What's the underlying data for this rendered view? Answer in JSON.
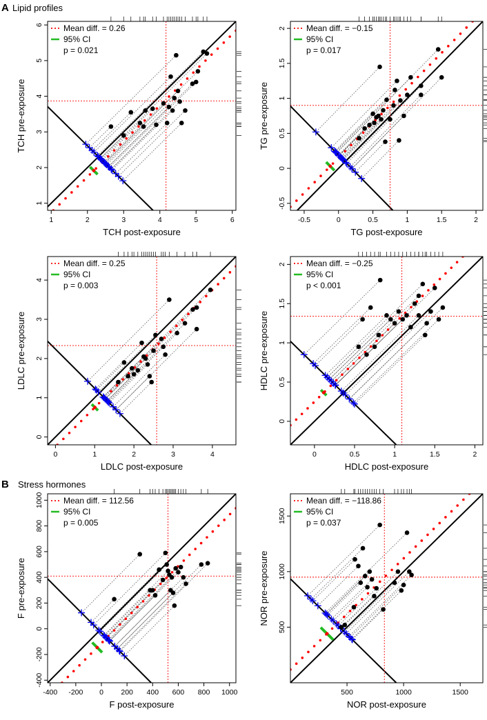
{
  "figure": {
    "section_a": {
      "letter": "A",
      "title": "Lipid profiles"
    },
    "section_b": {
      "letter": "B",
      "title": "Stress hormones"
    }
  },
  "legend_labels": {
    "mean": "Mean diff.",
    "ci": "95% CI"
  },
  "colors": {
    "mean": "#ff0000",
    "ci": "#22bb22",
    "proj": "#0000ee",
    "point": "#000000",
    "guide": "#555555"
  },
  "chart_data": [
    {
      "type": "scatter",
      "id": "tch",
      "xlabel": "TCH post-exposure",
      "ylabel": "TCH pre-exposure",
      "xlim": [
        0.9,
        6.1
      ],
      "ylim": [
        0.8,
        6.1
      ],
      "xticks": [
        1,
        2,
        3,
        4,
        5,
        6
      ],
      "yticks": [
        1,
        2,
        3,
        4,
        5,
        6
      ],
      "mean_text": "Mean diff. = 0.26",
      "p_text": "p = 0.021",
      "mean_diff": 0.26,
      "ci": [
        0.05,
        0.47
      ],
      "mean_x": 4.17,
      "mean_y": 3.87,
      "points": [
        [
          2.65,
          3.15
        ],
        [
          3.0,
          2.9
        ],
        [
          3.2,
          3.55
        ],
        [
          3.45,
          3.25
        ],
        [
          3.55,
          3.15
        ],
        [
          3.6,
          3.6
        ],
        [
          3.8,
          3.65
        ],
        [
          3.9,
          3.2
        ],
        [
          4.1,
          3.8
        ],
        [
          4.2,
          3.25
        ],
        [
          4.25,
          3.7
        ],
        [
          4.3,
          4.55
        ],
        [
          4.35,
          3.6
        ],
        [
          4.4,
          3.95
        ],
        [
          4.45,
          5.15
        ],
        [
          4.5,
          4.15
        ],
        [
          4.55,
          3.85
        ],
        [
          4.6,
          3.25
        ],
        [
          4.7,
          3.6
        ],
        [
          4.9,
          4.35
        ],
        [
          5.0,
          4.4
        ],
        [
          5.05,
          4.7
        ],
        [
          5.2,
          5.25
        ],
        [
          5.3,
          5.2
        ]
      ]
    },
    {
      "type": "scatter",
      "id": "tg",
      "xlabel": "TG post-exposure",
      "ylabel": "TG pre-exposure",
      "xlim": [
        -0.7,
        2.1
      ],
      "ylim": [
        -0.6,
        2.1
      ],
      "xticks": [
        -0.5,
        0.0,
        0.5,
        1.0,
        1.5,
        2.0
      ],
      "yticks": [
        -0.5,
        0.0,
        0.5,
        1.0,
        1.5,
        2.0
      ],
      "mean_text": "Mean diff. = −0.15",
      "p_text": "p = 0.017",
      "mean_diff": -0.15,
      "ci": [
        -0.27,
        -0.03
      ],
      "mean_x": 0.75,
      "mean_y": 0.9,
      "points": [
        [
          0.3,
          0.43
        ],
        [
          0.38,
          0.57
        ],
        [
          0.45,
          0.62
        ],
        [
          0.5,
          0.78
        ],
        [
          0.52,
          0.65
        ],
        [
          0.55,
          0.73
        ],
        [
          0.58,
          0.75
        ],
        [
          0.6,
          1.45
        ],
        [
          0.62,
          0.7
        ],
        [
          0.65,
          0.83
        ],
        [
          0.68,
          0.38
        ],
        [
          0.7,
          0.98
        ],
        [
          0.75,
          0.7
        ],
        [
          0.8,
          0.9
        ],
        [
          0.82,
          1.12
        ],
        [
          0.85,
          1.25
        ],
        [
          0.88,
          0.4
        ],
        [
          0.9,
          0.97
        ],
        [
          0.95,
          0.75
        ],
        [
          1.0,
          1.05
        ],
        [
          1.05,
          1.3
        ],
        [
          1.2,
          1.05
        ],
        [
          1.2,
          1.18
        ],
        [
          1.45,
          1.7
        ],
        [
          1.5,
          1.3
        ]
      ]
    },
    {
      "type": "scatter",
      "id": "ldlc",
      "xlabel": "LDLC post-exposure",
      "ylabel": "LDLC pre-exposure",
      "xlim": [
        -0.2,
        4.6
      ],
      "ylim": [
        -0.2,
        4.6
      ],
      "xticks": [
        0,
        1,
        2,
        3,
        4
      ],
      "yticks": [
        0,
        1,
        2,
        3,
        4
      ],
      "mean_text": "Mean diff. = 0.25",
      "p_text": "p = 0.003",
      "mean_diff": 0.25,
      "ci": [
        0.09,
        0.41
      ],
      "mean_x": 2.58,
      "mean_y": 2.33,
      "points": [
        [
          1.6,
          1.4
        ],
        [
          1.75,
          1.9
        ],
        [
          1.85,
          1.55
        ],
        [
          1.95,
          1.75
        ],
        [
          2.0,
          1.6
        ],
        [
          2.1,
          1.7
        ],
        [
          2.2,
          2.4
        ],
        [
          2.25,
          2.05
        ],
        [
          2.3,
          2.0
        ],
        [
          2.35,
          1.85
        ],
        [
          2.4,
          1.55
        ],
        [
          2.45,
          1.4
        ],
        [
          2.5,
          2.2
        ],
        [
          2.55,
          2.6
        ],
        [
          2.7,
          2.5
        ],
        [
          2.75,
          2.3
        ],
        [
          2.8,
          2.1
        ],
        [
          2.9,
          3.5
        ],
        [
          3.1,
          2.65
        ],
        [
          3.3,
          2.9
        ],
        [
          3.5,
          3.25
        ],
        [
          3.6,
          3.3
        ],
        [
          3.6,
          2.75
        ],
        [
          3.95,
          3.75
        ]
      ]
    },
    {
      "type": "scatter",
      "id": "hdlc",
      "xlabel": "HDLC post-exposure",
      "ylabel": "HDLC pre-exposure",
      "xlim": [
        -0.3,
        2.1
      ],
      "ylim": [
        -0.3,
        2.1
      ],
      "xticks": [
        0.0,
        0.5,
        1.0,
        1.5,
        2.0
      ],
      "yticks": [
        0.0,
        0.5,
        1.0,
        1.5,
        2.0
      ],
      "mean_text": "Mean diff. = −0.25",
      "p_text": "p < 0.001",
      "mean_diff": -0.25,
      "ci": [
        -0.32,
        -0.18
      ],
      "mean_x": 1.09,
      "mean_y": 1.34,
      "points": [
        [
          0.55,
          0.95
        ],
        [
          0.6,
          1.3
        ],
        [
          0.65,
          0.85
        ],
        [
          0.7,
          1.45
        ],
        [
          0.75,
          0.95
        ],
        [
          0.8,
          1.1
        ],
        [
          0.82,
          1.8
        ],
        [
          0.9,
          1.35
        ],
        [
          0.95,
          1.3
        ],
        [
          1.0,
          1.25
        ],
        [
          1.05,
          1.4
        ],
        [
          1.1,
          1.3
        ],
        [
          1.15,
          1.35
        ],
        [
          1.2,
          1.2
        ],
        [
          1.25,
          1.5
        ],
        [
          1.3,
          1.35
        ],
        [
          1.35,
          1.75
        ],
        [
          1.4,
          1.25
        ],
        [
          1.45,
          1.4
        ],
        [
          1.5,
          1.7
        ],
        [
          1.55,
          1.3
        ],
        [
          1.6,
          1.45
        ],
        [
          1.3,
          1.6
        ],
        [
          1.38,
          1.1
        ]
      ]
    },
    {
      "type": "scatter",
      "id": "f",
      "xlabel": "F post-exposure",
      "ylabel": "F pre-exposure",
      "xlim": [
        -420,
        1050
      ],
      "ylim": [
        -420,
        1050
      ],
      "xticks": [
        -400,
        -200,
        0,
        200,
        400,
        600,
        800,
        1000
      ],
      "yticks": [
        -400,
        -200,
        0,
        200,
        400,
        600,
        800,
        1000
      ],
      "mean_text": "Mean diff. = 112.56",
      "p_text": "p = 0.005",
      "mean_diff": 112.56,
      "ci": [
        35,
        190
      ],
      "mean_x": 520,
      "mean_y": 410,
      "points": [
        [
          100,
          230
        ],
        [
          300,
          580
        ],
        [
          380,
          300
        ],
        [
          400,
          300
        ],
        [
          420,
          260
        ],
        [
          450,
          460
        ],
        [
          480,
          380
        ],
        [
          500,
          590
        ],
        [
          510,
          500
        ],
        [
          520,
          450
        ],
        [
          530,
          420
        ],
        [
          540,
          300
        ],
        [
          550,
          400
        ],
        [
          560,
          280
        ],
        [
          570,
          180
        ],
        [
          580,
          470
        ],
        [
          600,
          440
        ],
        [
          620,
          480
        ],
        [
          640,
          400
        ],
        [
          660,
          350
        ],
        [
          780,
          500
        ],
        [
          830,
          510
        ]
      ]
    },
    {
      "type": "scatter",
      "id": "nor",
      "xlabel": "NOR post-exposure",
      "ylabel": "NOR pre-exposure",
      "xlim": [
        0,
        1700
      ],
      "ylim": [
        0,
        1700
      ],
      "xticks": [
        500,
        1000,
        1500
      ],
      "yticks": [
        500,
        1000,
        1500
      ],
      "mean_text": "Mean diff. = −118.86",
      "p_text": "p = 0.037",
      "mean_diff": -118.86,
      "ci": [
        -230,
        -8
      ],
      "mean_x": 830,
      "mean_y": 950,
      "points": [
        [
          450,
          500
        ],
        [
          480,
          520
        ],
        [
          560,
          680
        ],
        [
          570,
          1110
        ],
        [
          600,
          1050
        ],
        [
          620,
          900
        ],
        [
          640,
          1210
        ],
        [
          660,
          960
        ],
        [
          680,
          860
        ],
        [
          700,
          1000
        ],
        [
          720,
          930
        ],
        [
          740,
          780
        ],
        [
          760,
          850
        ],
        [
          790,
          1420
        ],
        [
          820,
          660
        ],
        [
          920,
          900
        ],
        [
          950,
          1000
        ],
        [
          980,
          830
        ],
        [
          1000,
          880
        ],
        [
          1030,
          1350
        ],
        [
          1050,
          1000
        ],
        [
          1070,
          970
        ]
      ]
    }
  ]
}
